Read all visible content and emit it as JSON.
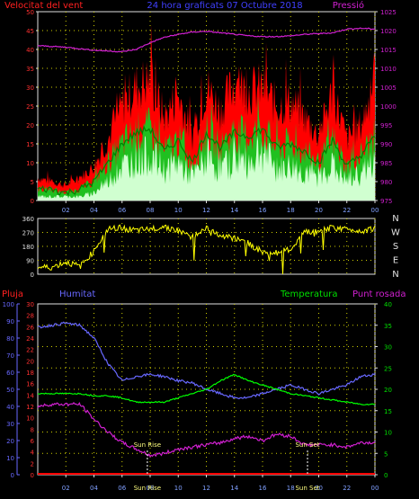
{
  "colors": {
    "wind_avg": "#00a000",
    "wind_gust": "#ff0000",
    "wind_min": "#d0ffd0",
    "pressure": "#d020d0",
    "direction": "#ffff00",
    "rain": "#ff0000",
    "humidity": "#6868ff",
    "temperature": "#00ff00",
    "dewpoint": "#d020d0",
    "grid": "#d0d000",
    "axis": "#e0e0e0",
    "sun": "#ffff80"
  },
  "chart_data": [
    {
      "type": "line",
      "title": "24 hora graficats   07 Octubre 2018",
      "ylabel": "Velocitat del vent",
      "y2label": "Pressió",
      "x_ticks": [
        "02",
        "04",
        "06",
        "08",
        "10",
        "12",
        "14",
        "16",
        "18",
        "20",
        "22",
        "00"
      ],
      "y_ticks": [
        "0",
        "5",
        "10",
        "15",
        "20",
        "25",
        "30",
        "35",
        "40",
        "45",
        "50"
      ],
      "y2_ticks": [
        "975",
        "980",
        "985",
        "990",
        "995",
        "1000",
        "1005",
        "1010",
        "1015",
        "1020",
        "1025"
      ],
      "ylim": [
        0,
        50
      ],
      "y2lim": [
        975,
        1025
      ],
      "grid": true,
      "hours": [
        0,
        1,
        2,
        3,
        4,
        5,
        6,
        7,
        8,
        9,
        10,
        11,
        12,
        13,
        14,
        15,
        16,
        17,
        18,
        19,
        20,
        21,
        22,
        23,
        24
      ],
      "series": [
        {
          "key": "gust",
          "values": [
            6,
            5,
            4,
            6,
            9,
            16,
            25,
            30,
            32,
            22,
            28,
            17,
            30,
            24,
            31,
            29,
            30,
            25,
            26,
            22,
            17,
            29,
            16,
            20,
            31
          ]
        },
        {
          "key": "avg",
          "values": [
            3,
            3,
            2,
            3,
            5,
            10,
            15,
            18,
            19,
            13,
            16,
            10,
            18,
            14,
            18,
            17,
            19,
            14,
            15,
            13,
            10,
            16,
            9,
            12,
            17
          ]
        },
        {
          "key": "min",
          "values": [
            1,
            1,
            1,
            1,
            2,
            5,
            9,
            11,
            12,
            8,
            10,
            6,
            11,
            8,
            11,
            10,
            13,
            8,
            9,
            7,
            6,
            9,
            5,
            7,
            10
          ]
        },
        {
          "key": "pressure",
          "values": [
            1016,
            1015.8,
            1015.6,
            1015.2,
            1014.8,
            1014.6,
            1014.4,
            1015,
            1016.8,
            1018.2,
            1019,
            1019.6,
            1019.8,
            1019.4,
            1019,
            1018.6,
            1018.4,
            1018.4,
            1018.6,
            1019,
            1019.2,
            1019.4,
            1020.4,
            1020.6,
            1020.4
          ]
        }
      ]
    },
    {
      "type": "line",
      "axis_labels": [
        "N",
        "W",
        "S",
        "E",
        "N"
      ],
      "y_ticks": [
        "0",
        "90",
        "180",
        "270",
        "360"
      ],
      "ylim": [
        0,
        360
      ],
      "grid": true,
      "hours": [
        0,
        1,
        2,
        3,
        4,
        5,
        6,
        7,
        8,
        9,
        10,
        11,
        12,
        13,
        14,
        15,
        16,
        17,
        18,
        19,
        20,
        21,
        22,
        23,
        24
      ],
      "series": [
        {
          "key": "direction",
          "values": [
            45,
            45,
            80,
            50,
            150,
            290,
            300,
            280,
            290,
            310,
            280,
            240,
            300,
            250,
            230,
            200,
            140,
            140,
            160,
            270,
            280,
            300,
            290,
            280,
            300
          ]
        }
      ]
    },
    {
      "type": "line",
      "labels": {
        "rain": "Pluja",
        "humidity": "Humitat",
        "temperature": "Temperatura",
        "dewpoint": "Punt rosada"
      },
      "rain_ticks": [
        "0",
        "10",
        "20",
        "30",
        "40",
        "50",
        "60",
        "70",
        "80",
        "90",
        "100"
      ],
      "humidity_ticks": [
        "0",
        "2",
        "4",
        "6",
        "8",
        "10",
        "12",
        "14",
        "16",
        "18",
        "20",
        "22",
        "24",
        "26",
        "28",
        "30"
      ],
      "temperature_ticks": [
        "0",
        "5",
        "10",
        "15",
        "20",
        "25",
        "30",
        "35",
        "40"
      ],
      "x_ticks": [
        "02",
        "04",
        "06",
        "08",
        "10",
        "12",
        "14",
        "16",
        "18",
        "20",
        "22",
        "00"
      ],
      "ylim": [
        0,
        40
      ],
      "grid": true,
      "annotations": [
        {
          "label": "Sun Rise",
          "hour": 7.8
        },
        {
          "label": "Sun Set",
          "hour": 19.2
        }
      ],
      "bottom_labels": [
        "Sun Rise",
        "Sun Set"
      ],
      "hours": [
        0,
        1,
        2,
        3,
        4,
        5,
        6,
        7,
        8,
        9,
        10,
        11,
        12,
        13,
        14,
        15,
        16,
        17,
        18,
        19,
        20,
        21,
        22,
        23,
        24
      ],
      "series": [
        {
          "key": "humidity",
          "values": [
            34.5,
            35,
            35.5,
            35,
            32,
            26,
            22,
            23,
            23.5,
            23,
            22,
            21.5,
            20,
            19,
            18,
            18,
            19,
            20,
            21,
            20,
            19,
            20,
            21,
            23,
            23.5
          ]
        },
        {
          "key": "temperature",
          "values": [
            19,
            19,
            19,
            19,
            18.5,
            18.5,
            18,
            17,
            17,
            17,
            18,
            19,
            20,
            22,
            23.5,
            22,
            21,
            20,
            19,
            18.5,
            18,
            17.5,
            17,
            16.5,
            16.5
          ]
        },
        {
          "key": "dewpoint",
          "values": [
            16,
            16.5,
            16.5,
            16.5,
            13,
            10,
            7.5,
            6,
            4.5,
            5,
            6,
            6.5,
            7,
            7.5,
            8.5,
            9,
            8,
            9.5,
            9,
            7,
            7,
            7,
            6.5,
            7.5,
            7.5
          ]
        },
        {
          "key": "rain",
          "values": [
            0,
            0,
            0,
            0,
            0,
            0,
            0,
            0,
            0,
            0,
            0,
            0,
            0,
            0,
            0,
            0,
            0,
            0,
            0,
            0,
            0,
            0,
            0,
            0,
            0
          ]
        }
      ]
    }
  ]
}
